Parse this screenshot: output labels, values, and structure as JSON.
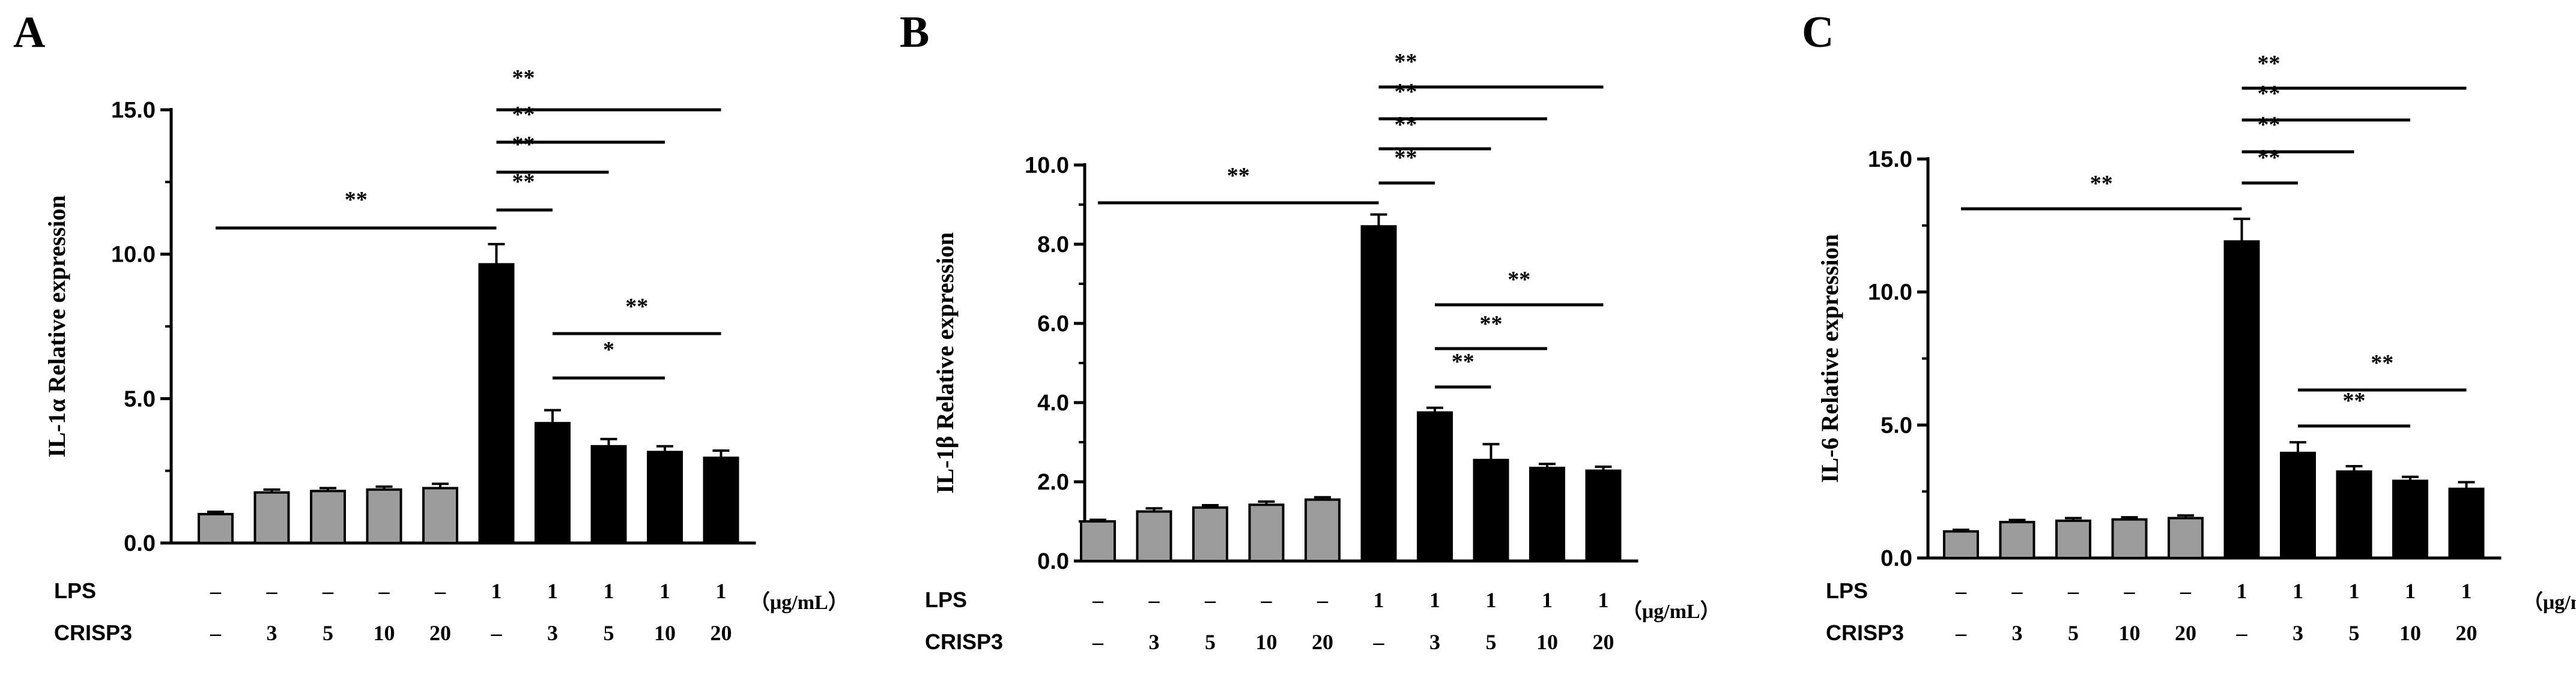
{
  "colors": {
    "control_bar": "#9c9c9c",
    "lps_bar": "#000000",
    "axis": "#000000",
    "background": "#ffffff"
  },
  "row_labels": {
    "lps": "LPS",
    "crisp3": "CRISP3",
    "unit": "（μg/mL）"
  },
  "chart_data": [
    {
      "type": "bar",
      "panel_label": "A",
      "ylabel": "IL-1α Relative expression",
      "ylim": [
        0,
        15
      ],
      "yticks": [
        "0.0",
        "5.0",
        "10.0",
        "15.0"
      ],
      "ytick_values": [
        0,
        5,
        10,
        15
      ],
      "categories": [
        "1",
        "2",
        "3",
        "4",
        "5",
        "6",
        "7",
        "8",
        "9",
        "10"
      ],
      "values": [
        1.0,
        1.75,
        1.8,
        1.85,
        1.9,
        9.65,
        4.15,
        3.35,
        3.15,
        2.95
      ],
      "errors": [
        0.08,
        0.1,
        0.1,
        0.1,
        0.15,
        0.7,
        0.45,
        0.25,
        0.2,
        0.25
      ],
      "lps_row": [
        "-",
        "-",
        "-",
        "-",
        "-",
        "1",
        "1",
        "1",
        "1",
        "1"
      ],
      "crisp3_row": [
        "-",
        "3",
        "5",
        "10",
        "20",
        "-",
        "3",
        "5",
        "10",
        "20"
      ],
      "significance": [
        {
          "from": 1,
          "to": 6,
          "label": "**"
        },
        {
          "from": 6,
          "to": 7,
          "label": "**"
        },
        {
          "from": 6,
          "to": 8,
          "label": "**"
        },
        {
          "from": 6,
          "to": 9,
          "label": "**"
        },
        {
          "from": 6,
          "to": 10,
          "label": "**"
        },
        {
          "from": 7,
          "to": 9,
          "label": "*"
        },
        {
          "from": 7,
          "to": 10,
          "label": "**"
        }
      ]
    },
    {
      "type": "bar",
      "panel_label": "B",
      "ylabel": "IL-1β  Relative expression",
      "ylim": [
        0,
        10
      ],
      "yticks": [
        "0.0",
        "2.0",
        "4.0",
        "6.0",
        "8.0",
        "10.0"
      ],
      "ytick_values": [
        0,
        2,
        4,
        6,
        8,
        10
      ],
      "categories": [
        "1",
        "2",
        "3",
        "4",
        "5",
        "6",
        "7",
        "8",
        "9",
        "10"
      ],
      "values": [
        1.0,
        1.25,
        1.35,
        1.42,
        1.55,
        8.45,
        3.75,
        2.55,
        2.35,
        2.28
      ],
      "errors": [
        0.04,
        0.08,
        0.06,
        0.08,
        0.06,
        0.3,
        0.12,
        0.4,
        0.1,
        0.1
      ],
      "lps_row": [
        "-",
        "-",
        "-",
        "-",
        "-",
        "1",
        "1",
        "1",
        "1",
        "1"
      ],
      "crisp3_row": [
        "-",
        "3",
        "5",
        "10",
        "20",
        "-",
        "3",
        "5",
        "10",
        "20"
      ],
      "significance": [
        {
          "from": 1,
          "to": 6,
          "label": "**"
        },
        {
          "from": 6,
          "to": 7,
          "label": "**"
        },
        {
          "from": 6,
          "to": 8,
          "label": "**"
        },
        {
          "from": 6,
          "to": 9,
          "label": "**"
        },
        {
          "from": 6,
          "to": 10,
          "label": "**"
        },
        {
          "from": 7,
          "to": 8,
          "label": "**"
        },
        {
          "from": 7,
          "to": 9,
          "label": "**"
        },
        {
          "from": 7,
          "to": 10,
          "label": "**"
        }
      ]
    },
    {
      "type": "bar",
      "panel_label": "C",
      "ylabel": "IL-6 Relative expression",
      "ylim": [
        0,
        15
      ],
      "yticks": [
        "0.0",
        "5.0",
        "10.0",
        "15.0"
      ],
      "ytick_values": [
        0,
        5,
        10,
        15
      ],
      "categories": [
        "1",
        "2",
        "3",
        "4",
        "5",
        "6",
        "7",
        "8",
        "9",
        "10"
      ],
      "values": [
        1.0,
        1.35,
        1.4,
        1.45,
        1.5,
        11.9,
        3.95,
        3.25,
        2.9,
        2.6
      ],
      "errors": [
        0.06,
        0.08,
        0.1,
        0.08,
        0.1,
        0.85,
        0.4,
        0.2,
        0.15,
        0.25
      ],
      "lps_row": [
        "-",
        "-",
        "-",
        "-",
        "-",
        "1",
        "1",
        "1",
        "1",
        "1"
      ],
      "crisp3_row": [
        "-",
        "3",
        "5",
        "10",
        "20",
        "-",
        "3",
        "5",
        "10",
        "20"
      ],
      "significance": [
        {
          "from": 1,
          "to": 6,
          "label": "**"
        },
        {
          "from": 6,
          "to": 7,
          "label": "**"
        },
        {
          "from": 6,
          "to": 8,
          "label": "**"
        },
        {
          "from": 6,
          "to": 9,
          "label": "**"
        },
        {
          "from": 6,
          "to": 10,
          "label": "**"
        },
        {
          "from": 7,
          "to": 9,
          "label": "**"
        },
        {
          "from": 7,
          "to": 10,
          "label": "**"
        }
      ]
    }
  ]
}
